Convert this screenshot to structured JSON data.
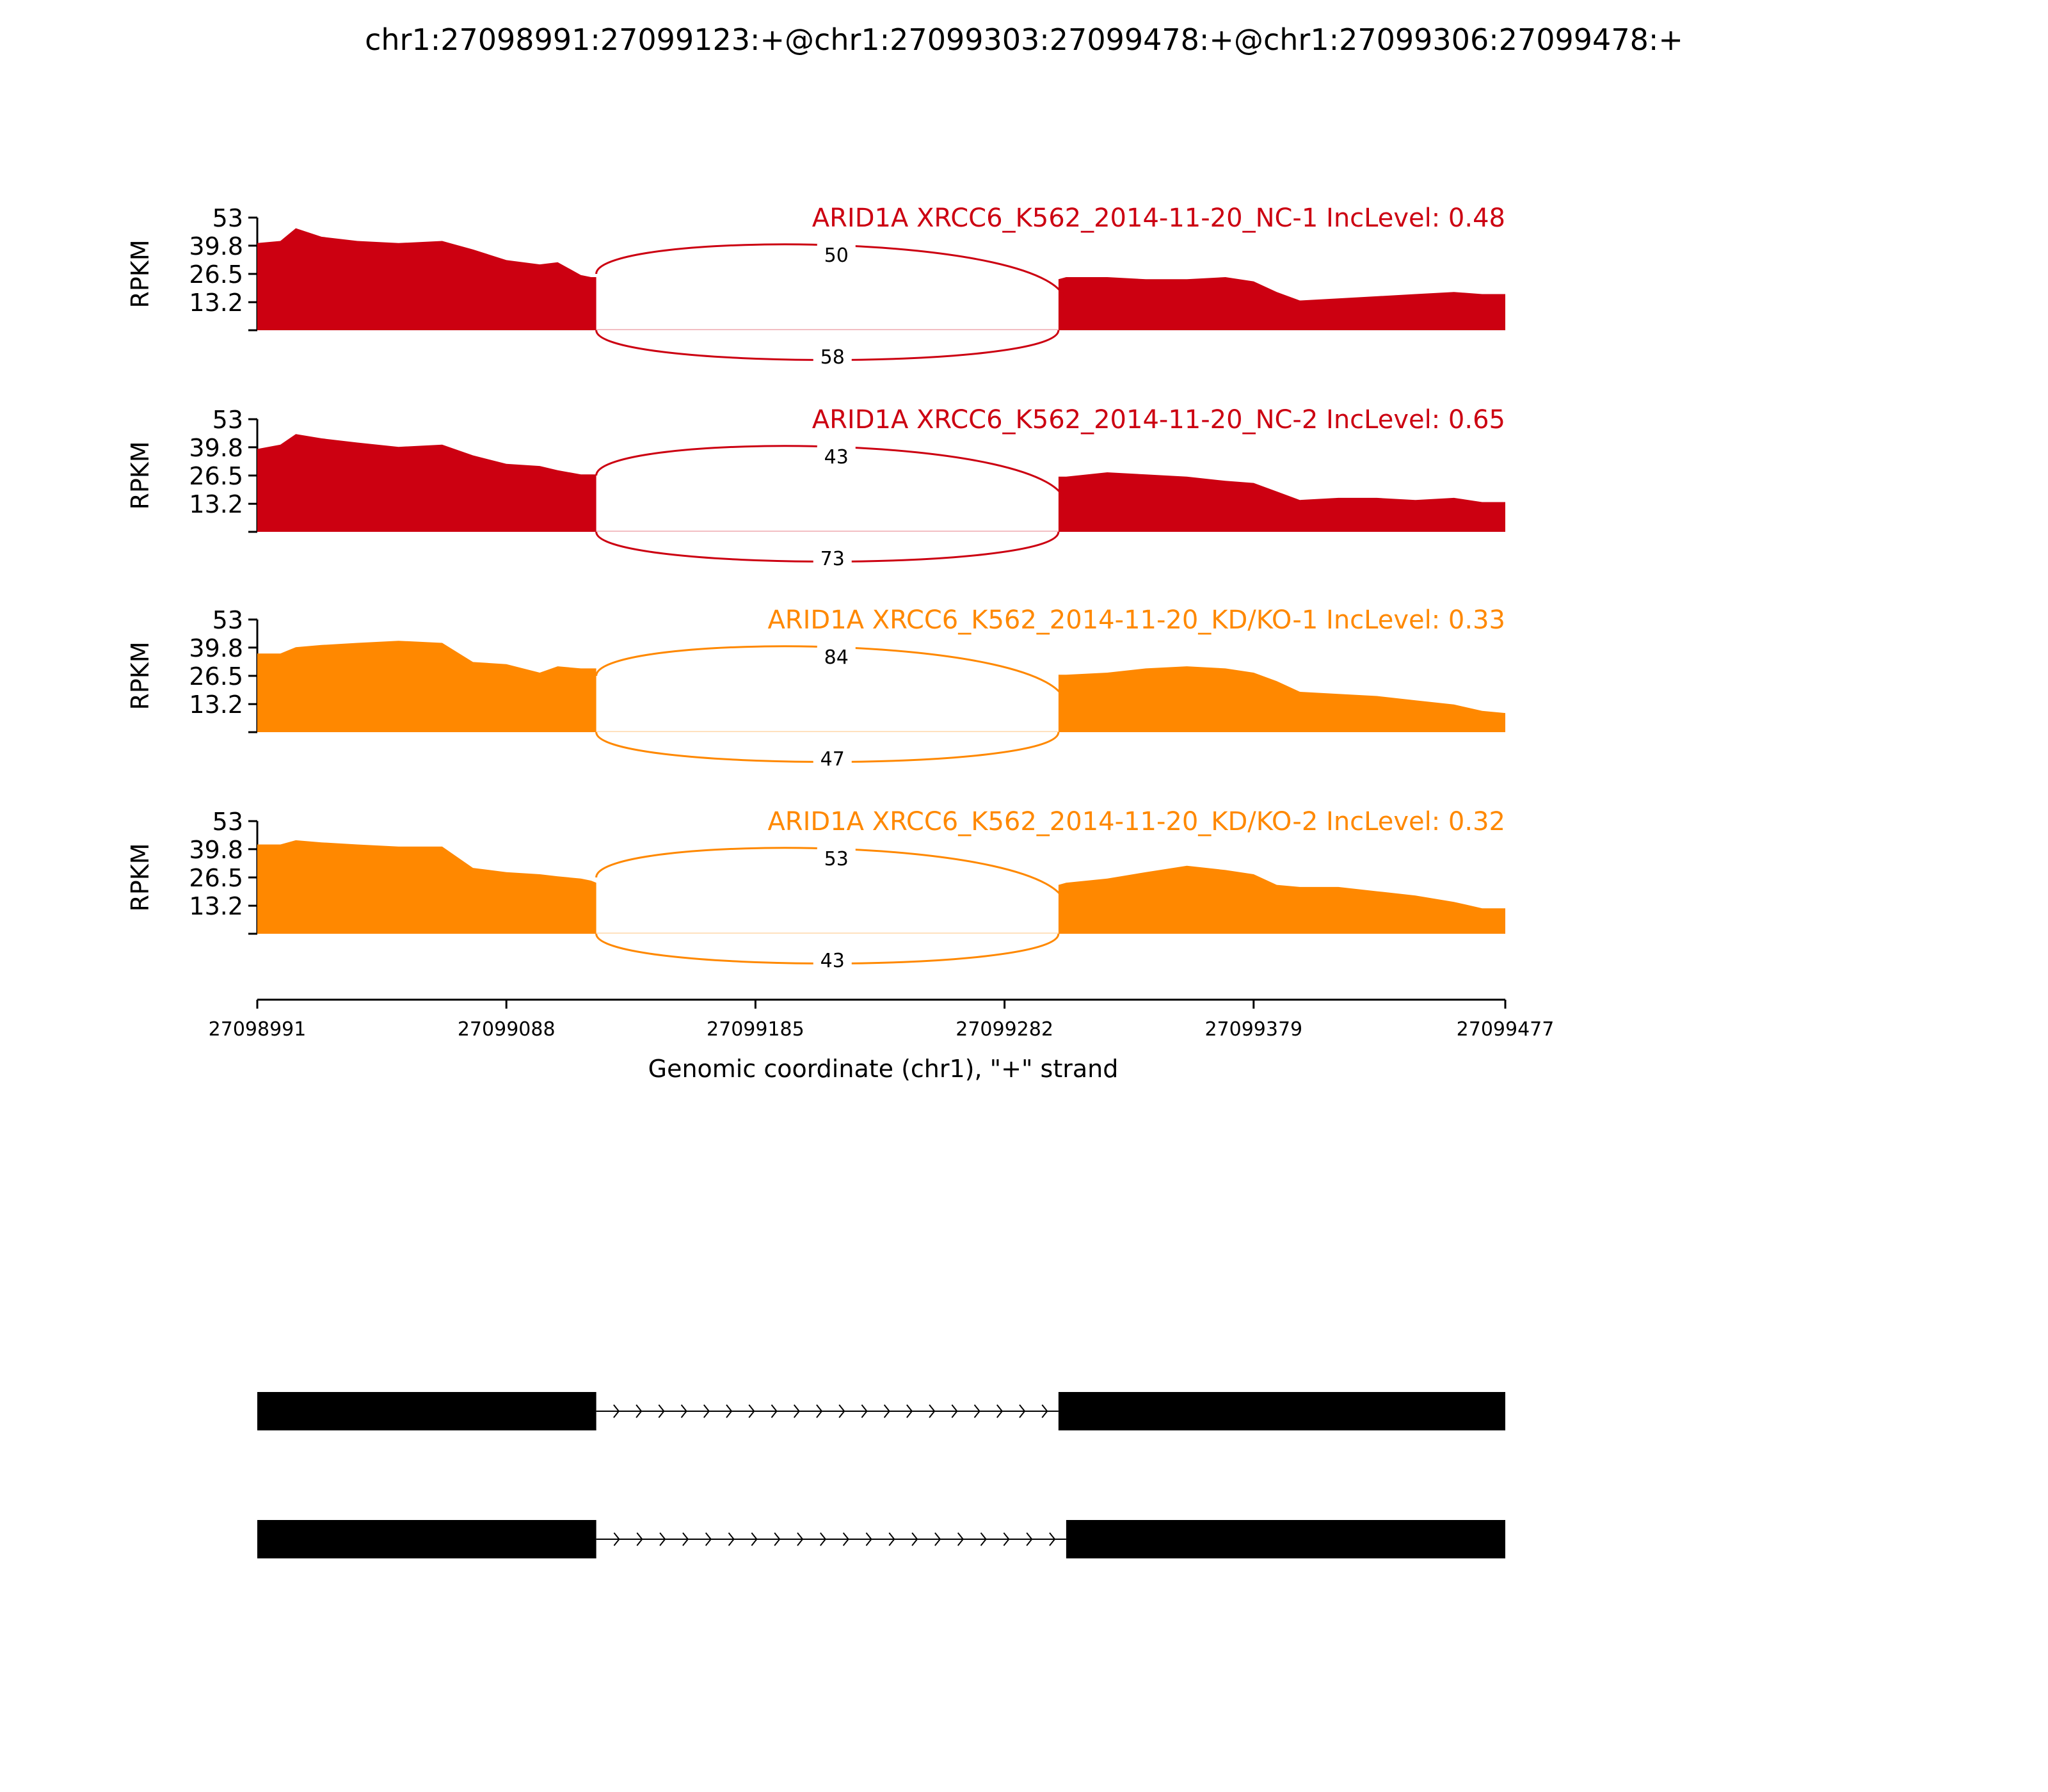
{
  "chart_data": {
    "type": "area",
    "title": "chr1:27098991:27099123:+@chr1:27099303:27099478:+@chr1:27099306:27099478:+",
    "xlabel": "Genomic coordinate (chr1), \"+\" strand",
    "ylabel": "RPKM",
    "xlim": [
      27098991,
      27099477
    ],
    "ylim": [
      0,
      53
    ],
    "yticks": [
      "53",
      "39.8",
      "26.5",
      "13.2"
    ],
    "xticks": [
      "27098991",
      "27099088",
      "27099185",
      "27099282",
      "27099379",
      "27099477"
    ],
    "series": [
      {
        "name": "ARID1A XRCC6_K562_2014-11-20_NC-1 IncLevel: 0.48",
        "color": "#cc0011",
        "x": [
          27098991,
          27099000,
          27099006,
          27099016,
          27099030,
          27099046,
          27099063,
          27099075,
          27099088,
          27099101,
          27099108,
          27099117,
          27099121,
          27099123,
          27099303,
          27099306,
          27099322,
          27099337,
          27099353,
          27099368,
          27099379,
          27099388,
          27099397,
          27099412,
          27099427,
          27099442,
          27099457,
          27099468,
          27099477
        ],
        "y": [
          41,
          42,
          48,
          44,
          42,
          41,
          42,
          38,
          33,
          31,
          32,
          26,
          25,
          25,
          24,
          25,
          25,
          24,
          24,
          25,
          23,
          18,
          14,
          15,
          16,
          17,
          18,
          17,
          17
        ],
        "junctions": [
          {
            "from": 27099123,
            "to": 27099306,
            "count": "50",
            "side": "above"
          },
          {
            "from": 27099123,
            "to": 27099303,
            "count": "58",
            "side": "below"
          }
        ]
      },
      {
        "name": "ARID1A XRCC6_K562_2014-11-20_NC-2 IncLevel: 0.65",
        "color": "#cc0011",
        "x": [
          27098991,
          27099000,
          27099006,
          27099016,
          27099030,
          27099046,
          27099063,
          27099075,
          27099088,
          27099101,
          27099108,
          27099117,
          27099121,
          27099123,
          27099303,
          27099306,
          27099322,
          27099337,
          27099353,
          27099368,
          27099379,
          27099388,
          27099397,
          27099412,
          27099427,
          27099442,
          27099457,
          27099468,
          27099477
        ],
        "y": [
          39,
          41,
          46,
          44,
          42,
          40,
          41,
          36,
          32,
          31,
          29,
          27,
          27,
          27,
          26,
          26,
          28,
          27,
          26,
          24,
          23,
          19,
          15,
          16,
          16,
          15,
          16,
          14,
          14
        ],
        "junctions": [
          {
            "from": 27099123,
            "to": 27099306,
            "count": "43",
            "side": "above"
          },
          {
            "from": 27099123,
            "to": 27099303,
            "count": "73",
            "side": "below"
          }
        ]
      },
      {
        "name": "ARID1A XRCC6_K562_2014-11-20_KD/KO-1 IncLevel: 0.33",
        "color": "#ff8800",
        "x": [
          27098991,
          27099000,
          27099006,
          27099016,
          27099030,
          27099046,
          27099063,
          27099075,
          27099088,
          27099101,
          27099108,
          27099117,
          27099121,
          27099123,
          27099303,
          27099306,
          27099322,
          27099337,
          27099353,
          27099368,
          27099379,
          27099388,
          27099397,
          27099412,
          27099427,
          27099442,
          27099457,
          27099468,
          27099477
        ],
        "y": [
          37,
          37,
          40,
          41,
          42,
          43,
          42,
          33,
          32,
          28,
          31,
          30,
          30,
          30,
          27,
          27,
          28,
          30,
          31,
          30,
          28,
          24,
          19,
          18,
          17,
          15,
          13,
          10,
          9
        ],
        "junctions": [
          {
            "from": 27099123,
            "to": 27099306,
            "count": "84",
            "side": "above"
          },
          {
            "from": 27099123,
            "to": 27099303,
            "count": "47",
            "side": "below"
          }
        ]
      },
      {
        "name": "ARID1A XRCC6_K562_2014-11-20_KD/KO-2 IncLevel: 0.32",
        "color": "#ff8800",
        "x": [
          27098991,
          27099000,
          27099006,
          27099016,
          27099030,
          27099046,
          27099063,
          27099075,
          27099088,
          27099101,
          27099108,
          27099117,
          27099121,
          27099123,
          27099303,
          27099306,
          27099322,
          27099337,
          27099353,
          27099368,
          27099379,
          27099388,
          27099397,
          27099412,
          27099427,
          27099442,
          27099457,
          27099468,
          27099477
        ],
        "y": [
          42,
          42,
          44,
          43,
          42,
          41,
          41,
          31,
          29,
          28,
          27,
          26,
          25,
          24,
          23,
          24,
          26,
          29,
          32,
          30,
          28,
          23,
          22,
          22,
          20,
          18,
          15,
          12,
          12
        ],
        "junctions": [
          {
            "from": 27099123,
            "to": 27099306,
            "count": "53",
            "side": "above"
          },
          {
            "from": 27099123,
            "to": 27099303,
            "count": "43",
            "side": "below"
          }
        ]
      }
    ],
    "gene_models": [
      {
        "exons": [
          [
            27098991,
            27099123
          ],
          [
            27099303,
            27099477
          ]
        ]
      },
      {
        "exons": [
          [
            27098991,
            27099123
          ],
          [
            27099306,
            27099477
          ]
        ]
      }
    ]
  }
}
